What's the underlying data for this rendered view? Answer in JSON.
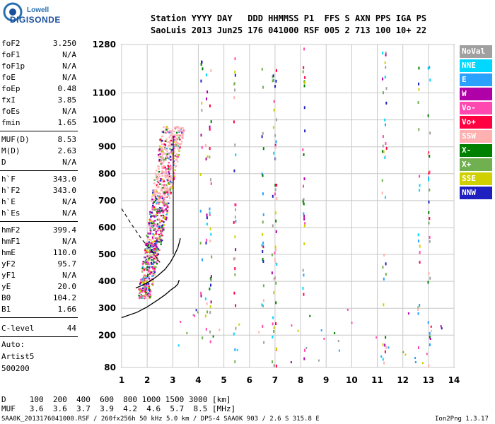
{
  "logo": {
    "brand": "Lowell",
    "name": "DIGISONDE"
  },
  "header": {
    "line1": "Station YYYY DAY   DDD HHMMSS P1  FFS S AXN PPS IGA PS",
    "line2": "SaoLuis 2013 Jun25 176 041000 RSF 005 2 713 100 10+ 22"
  },
  "params": [
    {
      "k": "foF2",
      "v": "3.250"
    },
    {
      "k": "foF1",
      "v": "N/A"
    },
    {
      "k": "foF1p",
      "v": "N/A"
    },
    {
      "k": "foE",
      "v": "N/A"
    },
    {
      "k": "foEp",
      "v": "0.48"
    },
    {
      "k": "fxI",
      "v": "3.85"
    },
    {
      "k": "foEs",
      "v": "N/A"
    },
    {
      "k": "fmin",
      "v": "1.65"
    },
    {
      "k": "MUF(D)",
      "v": "8.53"
    },
    {
      "k": "M(D)",
      "v": "2.63"
    },
    {
      "k": "D",
      "v": "N/A"
    },
    {
      "k": "h`F",
      "v": "343.0"
    },
    {
      "k": "h`F2",
      "v": "343.0"
    },
    {
      "k": "h`E",
      "v": "N/A"
    },
    {
      "k": "h`Es",
      "v": "N/A"
    },
    {
      "k": "hmF2",
      "v": "399.4"
    },
    {
      "k": "hmF1",
      "v": "N/A"
    },
    {
      "k": "hmE",
      "v": "110.0"
    },
    {
      "k": "yF2",
      "v": "95.7"
    },
    {
      "k": "yF1",
      "v": "N/A"
    },
    {
      "k": "yE",
      "v": "20.0"
    },
    {
      "k": "B0",
      "v": "104.2"
    },
    {
      "k": "B1",
      "v": "1.66"
    },
    {
      "k": "C-level",
      "v": "44"
    }
  ],
  "auto": {
    "label": "Auto:",
    "scaler": "Artist5",
    "version": "500200"
  },
  "legend": [
    {
      "label": "NoVal",
      "color": "#a0a0a0"
    },
    {
      "label": "NNE",
      "color": "#00d8ff"
    },
    {
      "label": "E",
      "color": "#2aa0ff"
    },
    {
      "label": "W",
      "color": "#b000a8"
    },
    {
      "label": "Vo-",
      "color": "#ff48b0"
    },
    {
      "label": "Vo+",
      "color": "#ff0040"
    },
    {
      "label": "SSW",
      "color": "#ffb0b0"
    },
    {
      "label": "X-",
      "color": "#008000"
    },
    {
      "label": "X+",
      "color": "#70b050"
    },
    {
      "label": "SSE",
      "color": "#d0d000"
    },
    {
      "label": "NNW",
      "color": "#2020c0"
    }
  ],
  "bottom": {
    "d_row": "D     100  200  400  600  800 1000 1500 3000 [km]",
    "muf_row": "MUF   3.6  3.6  3.7  3.9  4.2  4.6  5.7  8.5 [MHz]"
  },
  "footer": {
    "left": "SAA0K_2013176041000.RSF / 260fx256h 50 kHz 5.0 km / DPS-4 SAA0K 903 / 2.6 S 315.8 E",
    "right": "Ion2Png 1.3.17"
  },
  "chart_data": {
    "type": "scatter",
    "xlim": [
      1,
      14
    ],
    "ylim": [
      80,
      1280
    ],
    "x_ticks": [
      1,
      2,
      3,
      4,
      5,
      6,
      7,
      8,
      9,
      10,
      11,
      12,
      13,
      14
    ],
    "y_ticks": [
      80,
      200,
      300,
      400,
      500,
      600,
      700,
      800,
      900,
      1000,
      1100,
      1280
    ],
    "grid": true,
    "legend_position": "right",
    "trace_profile": {
      "x": [
        1.0,
        1.6,
        2.0,
        2.4,
        2.7,
        2.95,
        3.1,
        3.2,
        3.25
      ],
      "y": [
        265,
        285,
        305,
        330,
        350,
        370,
        380,
        390,
        405
      ]
    },
    "trace_virtual": {
      "x": [
        1.55,
        1.8,
        2.1,
        2.4,
        2.7,
        2.9,
        3.05,
        3.2,
        3.3
      ],
      "y": [
        375,
        385,
        400,
        420,
        445,
        470,
        495,
        525,
        560
      ]
    },
    "trace_dashed": {
      "x": [
        1.0,
        1.4,
        1.8,
        2.2,
        2.5
      ],
      "y": [
        670,
        610,
        555,
        510,
        470
      ]
    },
    "trace_vertical": {
      "x": [
        3.02,
        3.02
      ],
      "y": [
        500,
        940
      ]
    }
  }
}
